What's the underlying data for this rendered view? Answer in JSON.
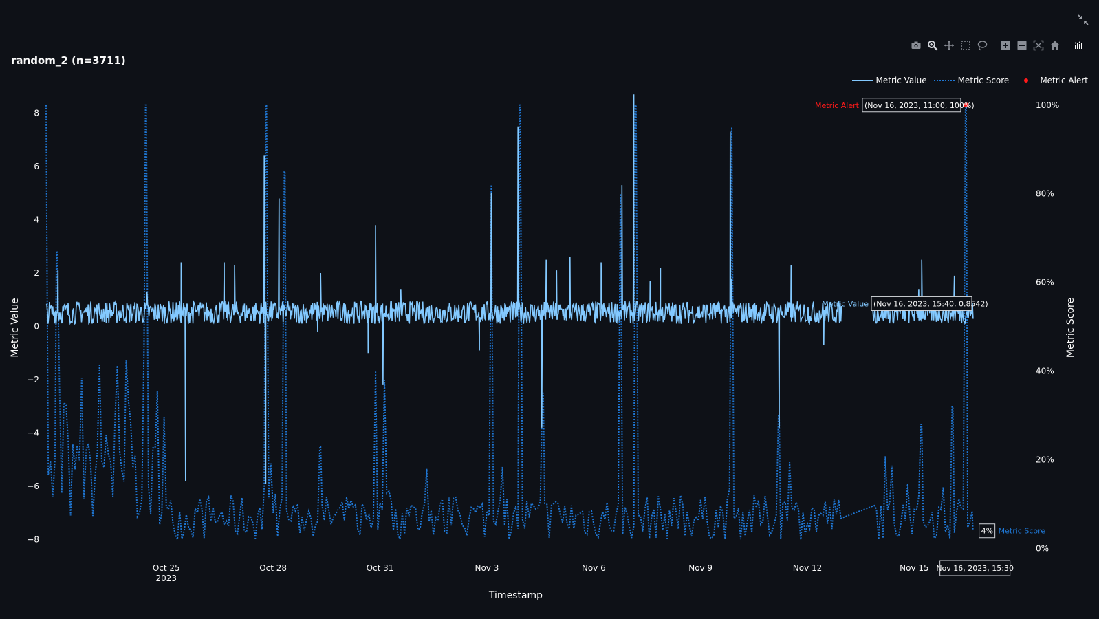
{
  "title": "random_2 (n=3711)",
  "modebar": {
    "icons": [
      "camera-icon",
      "zoom-icon",
      "pan-icon",
      "box-select-icon",
      "lasso-select-icon",
      "zoom-in-icon",
      "zoom-out-icon",
      "autoscale-icon",
      "reset-axes-icon",
      "plotly-logo-icon"
    ]
  },
  "colors": {
    "background": "#0e1117",
    "metric_value": "#83c9ff",
    "metric_score": "#1f77d4",
    "metric_alert": "#ff1a1a",
    "text": "#fafafa"
  },
  "chart_data": {
    "type": "line",
    "xlabel": "Timestamp",
    "ylabel": "Metric Value",
    "y2label": "Metric Score",
    "x_range": [
      "2023-10-21 15:00",
      "2023-11-17 00:00"
    ],
    "ylim": [
      -8.6,
      8.5
    ],
    "y2lim": [
      0,
      1.0
    ],
    "x_tick_labels": [
      "Oct 25",
      "Oct 28",
      "Oct 31",
      "Nov 3",
      "Nov 6",
      "Nov 9",
      "Nov 12",
      "Nov 15"
    ],
    "x_tick_dates": [
      "2023-10-25",
      "2023-10-28",
      "2023-10-31",
      "2023-11-03",
      "2023-11-06",
      "2023-11-09",
      "2023-11-12",
      "2023-11-15"
    ],
    "x_year_label": "2023",
    "y_ticks": [
      -8,
      -6,
      -4,
      -2,
      0,
      2,
      4,
      6,
      8
    ],
    "y_tick_labels": [
      "−8",
      "−6",
      "−4",
      "−2",
      "0",
      "2",
      "4",
      "6",
      "8"
    ],
    "y2_ticks": [
      0,
      0.2,
      0.4,
      0.6,
      0.8,
      1.0
    ],
    "y2_tick_labels": [
      "0%",
      "20%",
      "40%",
      "60%",
      "80%",
      "100%"
    ],
    "legend": [
      "Metric Value",
      "Metric Score",
      "Metric Alert"
    ],
    "legend_position": "top-right",
    "grid": false,
    "series": [
      {
        "name": "Metric Value",
        "style": "solid",
        "axis": "y",
        "n": 3711,
        "baseline_range": [
          0.1,
          0.95
        ],
        "gap": [
          "2023-11-12 23:00",
          "2023-11-13 20:00"
        ],
        "spikes": [
          [
            "2023-10-21 23:00",
            2.1
          ],
          [
            "2023-10-24 11:00",
            1.3
          ],
          [
            "2023-10-25 10:00",
            2.4
          ],
          [
            "2023-10-25 13:00",
            -5.8
          ],
          [
            "2023-10-26 15:00",
            2.4
          ],
          [
            "2023-10-26 22:00",
            2.3
          ],
          [
            "2023-10-27 18:00",
            6.4
          ],
          [
            "2023-10-27 19:00",
            -5.9
          ],
          [
            "2023-10-28 04:00",
            4.8
          ],
          [
            "2023-10-29 08:00",
            2.0
          ],
          [
            "2023-10-29 06:00",
            -0.2
          ],
          [
            "2023-10-30 21:00",
            3.8
          ],
          [
            "2023-10-30 16:00",
            -1.0
          ],
          [
            "2023-10-31 02:00",
            -2.2
          ],
          [
            "2023-10-31 14:00",
            1.4
          ],
          [
            "2023-11-02 19:00",
            -0.9
          ],
          [
            "2023-11-03 03:00",
            5.0
          ],
          [
            "2023-11-03 21:00",
            7.5
          ],
          [
            "2023-11-04 13:00",
            -3.8
          ],
          [
            "2023-11-04 16:00",
            2.5
          ],
          [
            "2023-11-04 23:00",
            2.1
          ],
          [
            "2023-11-05 08:00",
            2.6
          ],
          [
            "2023-11-06 19:00",
            5.3
          ],
          [
            "2023-11-06 05:00",
            2.4
          ],
          [
            "2023-11-07 03:00",
            8.7
          ],
          [
            "2023-11-07 14:00",
            1.7
          ],
          [
            "2023-11-07 21:00",
            2.2
          ],
          [
            "2023-11-09 20:00",
            7.3
          ],
          [
            "2023-11-09 21:00",
            1.8
          ],
          [
            "2023-11-11 13:00",
            2.3
          ],
          [
            "2023-11-11 05:00",
            -3.8
          ],
          [
            "2023-11-12 11:00",
            -0.7
          ],
          [
            "2023-11-15 03:00",
            1.4
          ],
          [
            "2023-11-15 05:00",
            2.5
          ],
          [
            "2023-11-16 03:00",
            1.9
          ],
          [
            "2023-11-16 15:40",
            0.8542
          ]
        ]
      },
      {
        "name": "Metric Score",
        "style": "dotted",
        "axis": "y2",
        "baseline_range": [
          0.02,
          0.12
        ],
        "early_range": [
          0.05,
          0.45
        ],
        "peaks": [
          [
            "2023-10-21 15:00",
            1.0
          ],
          [
            "2023-10-21 22:00",
            0.67
          ],
          [
            "2023-10-24 10:00",
            1.0
          ],
          [
            "2023-10-27 19:00",
            1.0
          ],
          [
            "2023-10-28 08:00",
            0.85
          ],
          [
            "2023-10-29 08:00",
            0.23
          ],
          [
            "2023-10-30 21:00",
            0.4
          ],
          [
            "2023-10-31 03:00",
            0.38
          ],
          [
            "2023-11-03 03:00",
            0.82
          ],
          [
            "2023-11-03 22:00",
            1.0
          ],
          [
            "2023-11-04 14:00",
            0.35
          ],
          [
            "2023-11-06 18:00",
            0.8
          ],
          [
            "2023-11-07 04:00",
            1.0
          ],
          [
            "2023-11-09 21:00",
            0.95
          ],
          [
            "2023-11-11 05:00",
            0.3
          ],
          [
            "2023-11-15 05:00",
            0.28
          ],
          [
            "2023-11-16 02:00",
            0.32
          ],
          [
            "2023-11-16 11:00",
            1.0
          ],
          [
            "2023-11-16 15:30",
            0.04
          ]
        ]
      },
      {
        "name": "Metric Alert",
        "style": "marker",
        "axis": "y2",
        "points": [
          [
            "2023-11-16 11:00",
            1.0
          ]
        ]
      }
    ],
    "annotations": [
      {
        "label": "Metric Alert",
        "text": "(Nov 16, 2023, 11:00, 100%)"
      },
      {
        "label": "Metric Value",
        "text": "(Nov 16, 2023, 15:40, 0.8542)"
      },
      {
        "label": "Metric Score",
        "text": "4%"
      },
      {
        "label": "",
        "text": "Nov 16, 2023, 15:30"
      }
    ]
  }
}
